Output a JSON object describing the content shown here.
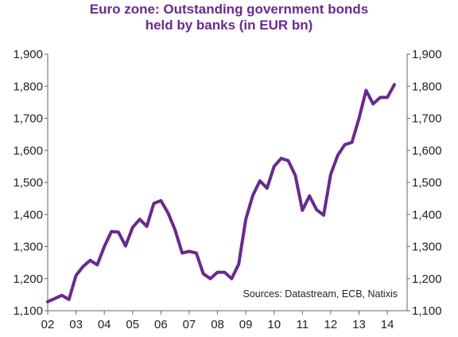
{
  "chart_data": {
    "type": "line",
    "title": [
      "Euro zone: Outstanding government bonds",
      "held by banks (in EUR bn)"
    ],
    "source": "Sources: Datastream, ECB, Natixis",
    "ylim": [
      1100,
      1900
    ],
    "yticks": [
      1100,
      1200,
      1300,
      1400,
      1500,
      1600,
      1700,
      1800,
      1900
    ],
    "ytick_labels": [
      "1,100",
      "1,200",
      "1,300",
      "1,400",
      "1,500",
      "1,600",
      "1,700",
      "1,800",
      "1,900"
    ],
    "xlim": [
      2002,
      2014.7
    ],
    "xticks": [
      2002,
      2003,
      2004,
      2005,
      2006,
      2007,
      2008,
      2009,
      2010,
      2011,
      2012,
      2013,
      2014
    ],
    "xtick_labels": [
      "02",
      "03",
      "04",
      "05",
      "06",
      "07",
      "08",
      "09",
      "10",
      "11",
      "12",
      "13",
      "14"
    ],
    "grid": false,
    "line_color": "#6a2a8e",
    "series": [
      {
        "x": [
          2002.0,
          2002.25,
          2002.5,
          2002.75,
          2003.0,
          2003.25,
          2003.5,
          2003.75,
          2004.0,
          2004.25,
          2004.5,
          2004.75,
          2005.0,
          2005.25,
          2005.5,
          2005.75,
          2006.0,
          2006.25,
          2006.5,
          2006.75,
          2007.0,
          2007.25,
          2007.5,
          2007.75,
          2008.0,
          2008.25,
          2008.5,
          2008.75,
          2009.0,
          2009.25,
          2009.5,
          2009.75,
          2010.0,
          2010.25,
          2010.5,
          2010.75,
          2011.0,
          2011.25,
          2011.5,
          2011.75,
          2012.0,
          2012.25,
          2012.5,
          2012.75,
          2013.0,
          2013.25,
          2013.5,
          2013.75,
          2014.0,
          2014.25
        ],
        "values": [
          1128,
          1138,
          1148,
          1135,
          1210,
          1238,
          1257,
          1243,
          1300,
          1347,
          1345,
          1302,
          1360,
          1385,
          1363,
          1435,
          1443,
          1405,
          1352,
          1280,
          1285,
          1280,
          1215,
          1200,
          1220,
          1220,
          1200,
          1245,
          1385,
          1460,
          1505,
          1482,
          1550,
          1575,
          1568,
          1522,
          1413,
          1458,
          1415,
          1398,
          1525,
          1585,
          1618,
          1625,
          1700,
          1787,
          1745,
          1765,
          1765,
          1805
        ]
      }
    ]
  }
}
